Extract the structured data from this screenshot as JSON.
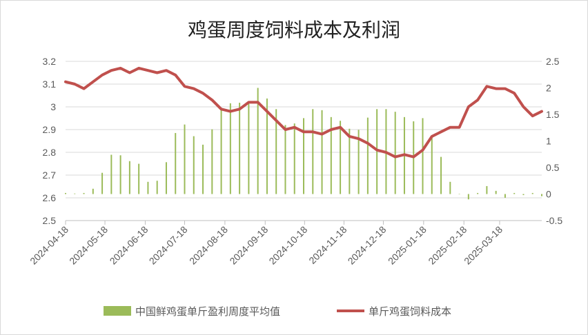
{
  "chart_data": {
    "type": "bar+line",
    "title": "鸡蛋周度饲料成本及利润",
    "left_axis": {
      "min": 2.5,
      "max": 3.2,
      "step": 0.1,
      "tick_labels": [
        "2.5",
        "2.6",
        "2.7",
        "2.8",
        "2.9",
        "3",
        "3.1",
        "3.2"
      ]
    },
    "right_axis": {
      "min": -0.5,
      "max": 2.5,
      "step": 0.5,
      "tick_labels": [
        "-0.5",
        "0",
        "0.5",
        "1",
        "1.5",
        "2",
        "2.5"
      ]
    },
    "x_ticks": [
      "2024-04-18",
      "2024-05-18",
      "2024-06-18",
      "2024-07-18",
      "2024-08-18",
      "2024-09-18",
      "2024-10-18",
      "2024-11-18",
      "2024-12-18",
      "2025-01-18",
      "2025-02-18",
      "2025-03-18"
    ],
    "x_tick_index": [
      0,
      4.3,
      8.7,
      13.0,
      17.4,
      21.8,
      26.1,
      30.4,
      34.7,
      39.1,
      43.5,
      47.4
    ],
    "series": [
      {
        "name": "中国鲜鸡蛋单斤盈利周度平均值",
        "type": "bar",
        "axis": "right",
        "color": "#9bbb59",
        "values": [
          0.02,
          0.01,
          0.02,
          0.1,
          0.4,
          0.74,
          0.73,
          0.62,
          0.57,
          0.23,
          0.25,
          0.6,
          1.15,
          1.31,
          1.09,
          0.93,
          1.22,
          1.6,
          1.71,
          1.72,
          1.7,
          2.0,
          1.8,
          1.6,
          1.3,
          1.33,
          1.43,
          1.6,
          1.58,
          1.45,
          1.38,
          1.23,
          1.21,
          1.44,
          1.6,
          1.6,
          1.55,
          1.45,
          1.37,
          1.43,
          1.09,
          0.7,
          0.23,
          0.0,
          -0.1,
          0.02,
          0.15,
          0.06,
          -0.07,
          0.02,
          -0.02,
          0.02,
          -0.04
        ]
      },
      {
        "name": "单斤鸡蛋饲料成本",
        "type": "line",
        "axis": "left",
        "color": "#c0504d",
        "values": [
          3.11,
          3.1,
          3.08,
          3.11,
          3.14,
          3.16,
          3.17,
          3.15,
          3.17,
          3.16,
          3.15,
          3.16,
          3.14,
          3.09,
          3.08,
          3.06,
          3.03,
          2.99,
          2.98,
          2.99,
          3.02,
          3.02,
          2.98,
          2.94,
          2.9,
          2.91,
          2.89,
          2.89,
          2.88,
          2.9,
          2.91,
          2.87,
          2.86,
          2.84,
          2.81,
          2.8,
          2.78,
          2.79,
          2.78,
          2.81,
          2.87,
          2.89,
          2.91,
          2.91,
          3.0,
          3.03,
          3.09,
          3.08,
          3.08,
          3.06,
          3.0,
          2.96,
          2.98
        ]
      }
    ],
    "legend_position": "bottom",
    "grid": "horizontal"
  }
}
